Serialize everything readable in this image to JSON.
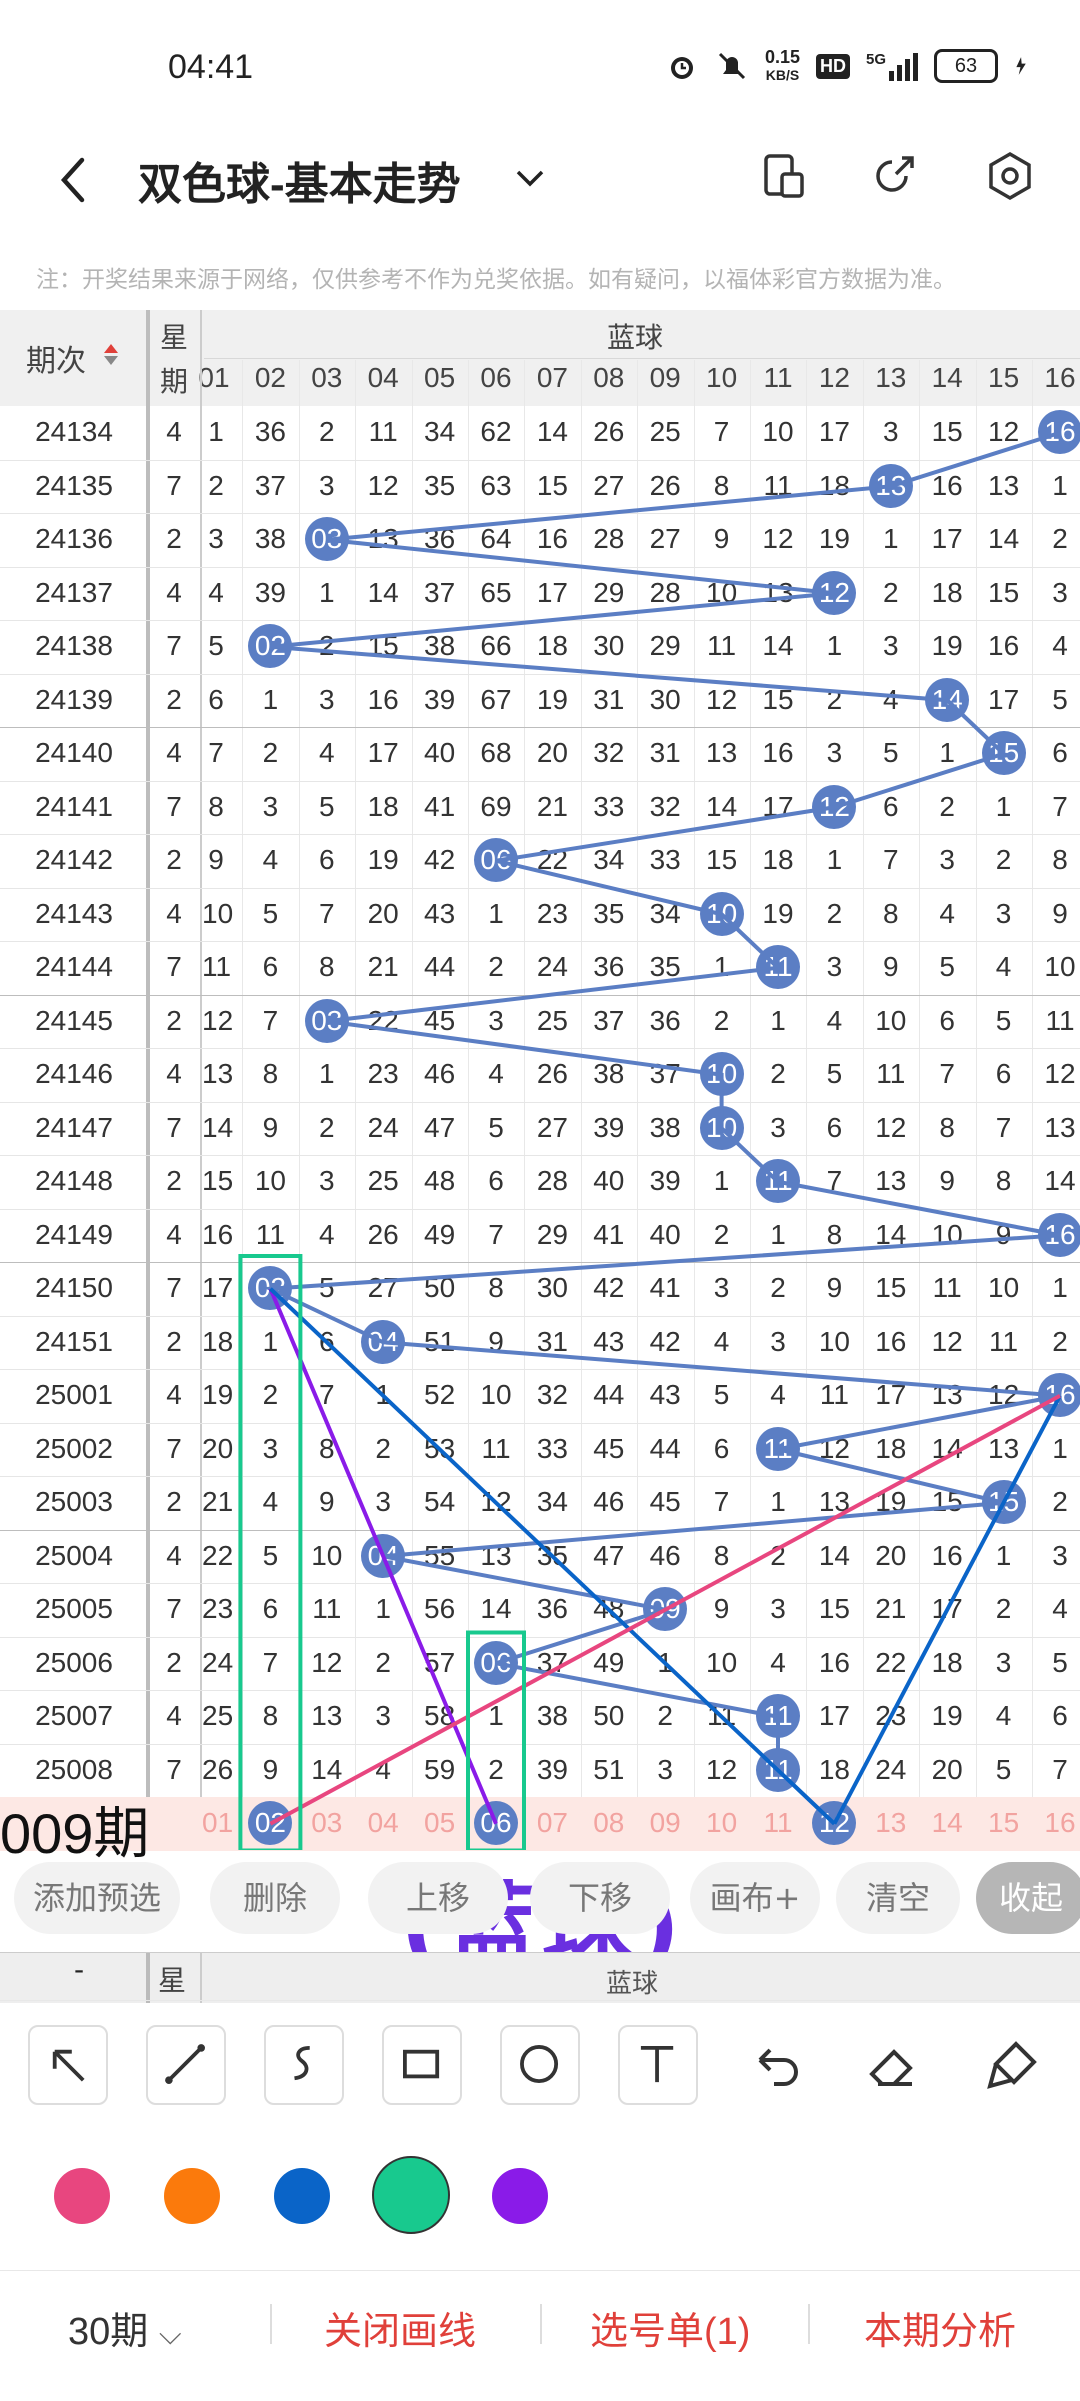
{
  "status": {
    "time": "04:41",
    "speed_top": "0.15",
    "speed_bottom": "KB/S",
    "hd": "HD",
    "net": "5G",
    "battery": "63"
  },
  "header": {
    "title": "双色球-基本走势"
  },
  "note": "注：开奖结果来源于网络，仅供参考不作为兑奖依据。如有疑问，以福体彩官方数据为准。",
  "table": {
    "col_period": "期次",
    "col_week": [
      "星",
      "期"
    ],
    "section": "蓝球",
    "ball_headers": [
      "01",
      "02",
      "03",
      "04",
      "05",
      "06",
      "07",
      "08",
      "09",
      "10",
      "11",
      "12",
      "13",
      "14",
      "15",
      "16"
    ],
    "rows": [
      {
        "p": "24134",
        "w": "4",
        "v": [
          "1",
          "36",
          "2",
          "11",
          "34",
          "62",
          "14",
          "26",
          "25",
          "7",
          "10",
          "17",
          "3",
          "15",
          "12",
          "16"
        ],
        "hit": 15
      },
      {
        "p": "24135",
        "w": "7",
        "v": [
          "2",
          "37",
          "3",
          "12",
          "35",
          "63",
          "15",
          "27",
          "26",
          "8",
          "11",
          "18",
          "13",
          "16",
          "13",
          "1"
        ],
        "hit": 12
      },
      {
        "p": "24136",
        "w": "2",
        "v": [
          "3",
          "38",
          "03",
          "13",
          "36",
          "64",
          "16",
          "28",
          "27",
          "9",
          "12",
          "19",
          "1",
          "17",
          "14",
          "2"
        ],
        "hit": 2
      },
      {
        "p": "24137",
        "w": "4",
        "v": [
          "4",
          "39",
          "1",
          "14",
          "37",
          "65",
          "17",
          "29",
          "28",
          "10",
          "13",
          "12",
          "2",
          "18",
          "15",
          "3"
        ],
        "hit": 11
      },
      {
        "p": "24138",
        "w": "7",
        "v": [
          "5",
          "02",
          "2",
          "15",
          "38",
          "66",
          "18",
          "30",
          "29",
          "11",
          "14",
          "1",
          "3",
          "19",
          "16",
          "4"
        ],
        "hit": 1
      },
      {
        "p": "24139",
        "w": "2",
        "v": [
          "6",
          "1",
          "3",
          "16",
          "39",
          "67",
          "19",
          "31",
          "30",
          "12",
          "15",
          "2",
          "4",
          "14",
          "17",
          "5"
        ],
        "hit": 13
      },
      {
        "p": "24140",
        "w": "4",
        "v": [
          "7",
          "2",
          "4",
          "17",
          "40",
          "68",
          "20",
          "32",
          "31",
          "13",
          "16",
          "3",
          "5",
          "1",
          "15",
          "6"
        ],
        "hit": 14
      },
      {
        "p": "24141",
        "w": "7",
        "v": [
          "8",
          "3",
          "5",
          "18",
          "41",
          "69",
          "21",
          "33",
          "32",
          "14",
          "17",
          "12",
          "6",
          "2",
          "1",
          "7"
        ],
        "hit": 11
      },
      {
        "p": "24142",
        "w": "2",
        "v": [
          "9",
          "4",
          "6",
          "19",
          "42",
          "06",
          "22",
          "34",
          "33",
          "15",
          "18",
          "1",
          "7",
          "3",
          "2",
          "8"
        ],
        "hit": 5
      },
      {
        "p": "24143",
        "w": "4",
        "v": [
          "10",
          "5",
          "7",
          "20",
          "43",
          "1",
          "23",
          "35",
          "34",
          "10",
          "19",
          "2",
          "8",
          "4",
          "3",
          "9"
        ],
        "hit": 9
      },
      {
        "p": "24144",
        "w": "7",
        "v": [
          "11",
          "6",
          "8",
          "21",
          "44",
          "2",
          "24",
          "36",
          "35",
          "1",
          "11",
          "3",
          "9",
          "5",
          "4",
          "10"
        ],
        "hit": 10
      },
      {
        "p": "24145",
        "w": "2",
        "v": [
          "12",
          "7",
          "03",
          "22",
          "45",
          "3",
          "25",
          "37",
          "36",
          "2",
          "1",
          "4",
          "10",
          "6",
          "5",
          "11"
        ],
        "hit": 2
      },
      {
        "p": "24146",
        "w": "4",
        "v": [
          "13",
          "8",
          "1",
          "23",
          "46",
          "4",
          "26",
          "38",
          "37",
          "10",
          "2",
          "5",
          "11",
          "7",
          "6",
          "12"
        ],
        "hit": 9
      },
      {
        "p": "24147",
        "w": "7",
        "v": [
          "14",
          "9",
          "2",
          "24",
          "47",
          "5",
          "27",
          "39",
          "38",
          "10",
          "3",
          "6",
          "12",
          "8",
          "7",
          "13"
        ],
        "hit": 9
      },
      {
        "p": "24148",
        "w": "2",
        "v": [
          "15",
          "10",
          "3",
          "25",
          "48",
          "6",
          "28",
          "40",
          "39",
          "1",
          "11",
          "7",
          "13",
          "9",
          "8",
          "14"
        ],
        "hit": 10
      },
      {
        "p": "24149",
        "w": "4",
        "v": [
          "16",
          "11",
          "4",
          "26",
          "49",
          "7",
          "29",
          "41",
          "40",
          "2",
          "1",
          "8",
          "14",
          "10",
          "9",
          "16"
        ],
        "hit": 15
      },
      {
        "p": "24150",
        "w": "7",
        "v": [
          "17",
          "02",
          "5",
          "27",
          "50",
          "8",
          "30",
          "42",
          "41",
          "3",
          "2",
          "9",
          "15",
          "11",
          "10",
          "1"
        ],
        "hit": 1
      },
      {
        "p": "24151",
        "w": "2",
        "v": [
          "18",
          "1",
          "6",
          "04",
          "51",
          "9",
          "31",
          "43",
          "42",
          "4",
          "3",
          "10",
          "16",
          "12",
          "11",
          "2"
        ],
        "hit": 3
      },
      {
        "p": "25001",
        "w": "4",
        "v": [
          "19",
          "2",
          "7",
          "1",
          "52",
          "10",
          "32",
          "44",
          "43",
          "5",
          "4",
          "11",
          "17",
          "13",
          "12",
          "16"
        ],
        "hit": 15
      },
      {
        "p": "25002",
        "w": "7",
        "v": [
          "20",
          "3",
          "8",
          "2",
          "53",
          "11",
          "33",
          "45",
          "44",
          "6",
          "11",
          "12",
          "18",
          "14",
          "13",
          "1"
        ],
        "hit": 10
      },
      {
        "p": "25003",
        "w": "2",
        "v": [
          "21",
          "4",
          "9",
          "3",
          "54",
          "12",
          "34",
          "46",
          "45",
          "7",
          "1",
          "13",
          "19",
          "15",
          "15",
          "2"
        ],
        "hit": 14
      },
      {
        "p": "25004",
        "w": "4",
        "v": [
          "22",
          "5",
          "10",
          "04",
          "55",
          "13",
          "35",
          "47",
          "46",
          "8",
          "2",
          "14",
          "20",
          "16",
          "1",
          "3"
        ],
        "hit": 3
      },
      {
        "p": "25005",
        "w": "7",
        "v": [
          "23",
          "6",
          "11",
          "1",
          "56",
          "14",
          "36",
          "48",
          "09",
          "9",
          "3",
          "15",
          "21",
          "17",
          "2",
          "4"
        ],
        "hit": 8
      },
      {
        "p": "25006",
        "w": "2",
        "v": [
          "24",
          "7",
          "12",
          "2",
          "57",
          "06",
          "37",
          "49",
          "1",
          "10",
          "4",
          "16",
          "22",
          "18",
          "3",
          "5"
        ],
        "hit": 5
      },
      {
        "p": "25007",
        "w": "4",
        "v": [
          "25",
          "8",
          "13",
          "3",
          "58",
          "1",
          "38",
          "50",
          "2",
          "11",
          "11",
          "17",
          "23",
          "19",
          "4",
          "6"
        ],
        "hit": 10
      },
      {
        "p": "25008",
        "w": "7",
        "v": [
          "26",
          "9",
          "14",
          "4",
          "59",
          "2",
          "39",
          "51",
          "3",
          "12",
          "11",
          "18",
          "24",
          "20",
          "5",
          "7"
        ],
        "hit": 10
      }
    ],
    "current_label": "009期",
    "current_row": [
      "01",
      "02",
      "03",
      "04",
      "05",
      "06",
      "07",
      "08",
      "09",
      "10",
      "11",
      "12",
      "13",
      "14",
      "15",
      "16"
    ],
    "current_selected": [
      1,
      5,
      11
    ]
  },
  "annotation_text": "(蓝球)",
  "buttons": {
    "add": "添加预选",
    "delete": "删除",
    "up": "上移",
    "down": "下移",
    "canvas": "画布+",
    "clear": "清空",
    "collapse": "收起"
  },
  "second_header": {
    "week": "星",
    "section": "蓝球",
    "period_dash": "-"
  },
  "colors": {
    "pink": "#e8467f",
    "orange": "#fb7a0c",
    "blue": "#0a64c8",
    "green": "#18c98e",
    "purple": "#8a1be8",
    "ball": "#5b7ec4",
    "red_text": "#e0403a"
  },
  "bottom": {
    "periods": "30期",
    "close_draw": "关闭画线",
    "pick_list": "选号单(1)",
    "analysis": "本期分析"
  }
}
